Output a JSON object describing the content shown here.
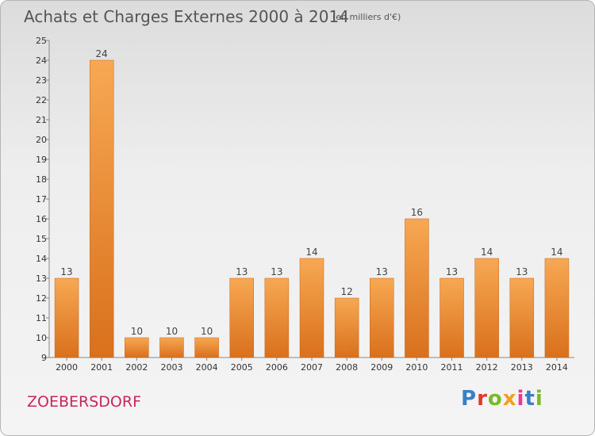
{
  "header": {
    "title": "Achats et Charges Externes 2000 à 2014",
    "unit": "(en milliers d'€)"
  },
  "footer": {
    "commune": "ZOEBERSDORF",
    "logo": "Proxiti",
    "logo_colors": [
      "#3a7fc4",
      "#e0392b",
      "#7ab929",
      "#f0a020",
      "#e83a8e",
      "#3a7fc4",
      "#7ab929"
    ]
  },
  "colors": {
    "bar_top": "#f7a853",
    "bar_bottom": "#d9701c",
    "title": "#555555",
    "commune": "#c8265f"
  },
  "chart_data": {
    "type": "bar",
    "categories": [
      "2000",
      "2001",
      "2002",
      "2003",
      "2004",
      "2005",
      "2006",
      "2007",
      "2008",
      "2009",
      "2010",
      "2011",
      "2012",
      "2013",
      "2014"
    ],
    "values": [
      13,
      24,
      10,
      10,
      10,
      13,
      13,
      14,
      12,
      13,
      16,
      13,
      14,
      13,
      14
    ],
    "title": "Achats et Charges Externes 2000 à 2014",
    "xlabel": "",
    "ylabel": "",
    "ylim": [
      9,
      25
    ],
    "yticks": [
      9,
      10,
      11,
      12,
      13,
      14,
      15,
      16,
      17,
      18,
      19,
      20,
      21,
      22,
      23,
      24,
      25
    ],
    "grid": false,
    "data_labels": true
  }
}
